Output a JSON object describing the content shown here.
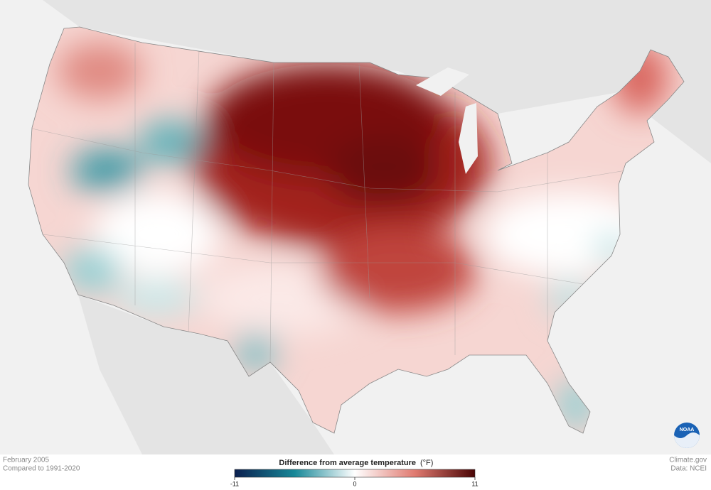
{
  "caption": {
    "period": "February 2005",
    "baseline": "Compared to 1991-2020"
  },
  "legend": {
    "title": "Difference from average temperature",
    "unit": "(°F)",
    "lim": [
      -11,
      11
    ],
    "ticks": [
      -11,
      0,
      11
    ]
  },
  "credits": {
    "site": "Climate.gov",
    "source": "Data: NCEI",
    "logo": "NOAA"
  }
}
